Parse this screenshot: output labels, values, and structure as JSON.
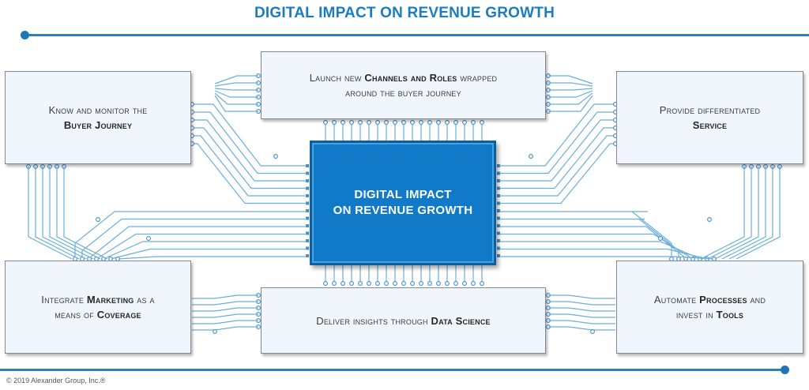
{
  "header": {
    "title": "DIGITAL IMPACT ON REVENUE GROWTH"
  },
  "center_chip": {
    "line1": "DIGITAL IMPACT",
    "line2": "ON REVENUE GROWTH"
  },
  "boxes": {
    "buyer_journey": {
      "pre": "Know and monitor the",
      "bold": "Buyer Journey"
    },
    "channels": {
      "pre": "Launch new ",
      "bold": "Channels and Roles",
      "post": " wrapped",
      "line2": "around the buyer journey"
    },
    "service": {
      "pre": "Provide differentiated",
      "bold": "Service"
    },
    "marketing": {
      "pre": "Integrate ",
      "bold": "Marketing",
      "post": " as a",
      "line2_pre": "means of ",
      "line2_bold": "Coverage"
    },
    "data_science": {
      "pre": "Deliver insights through ",
      "bold": "Data Science"
    },
    "automate": {
      "pre": "Automate ",
      "bold": "Processes",
      "post": " and",
      "line2_pre": "invest in ",
      "line2_bold": "Tools"
    }
  },
  "footer": {
    "copyright": "© 2019 Alexander Group, Inc.®"
  },
  "colors": {
    "accent": "#1b7dc0",
    "chip": "#117ac8",
    "trace": "#6aaedc",
    "box_fill": "#f0f6fc"
  }
}
